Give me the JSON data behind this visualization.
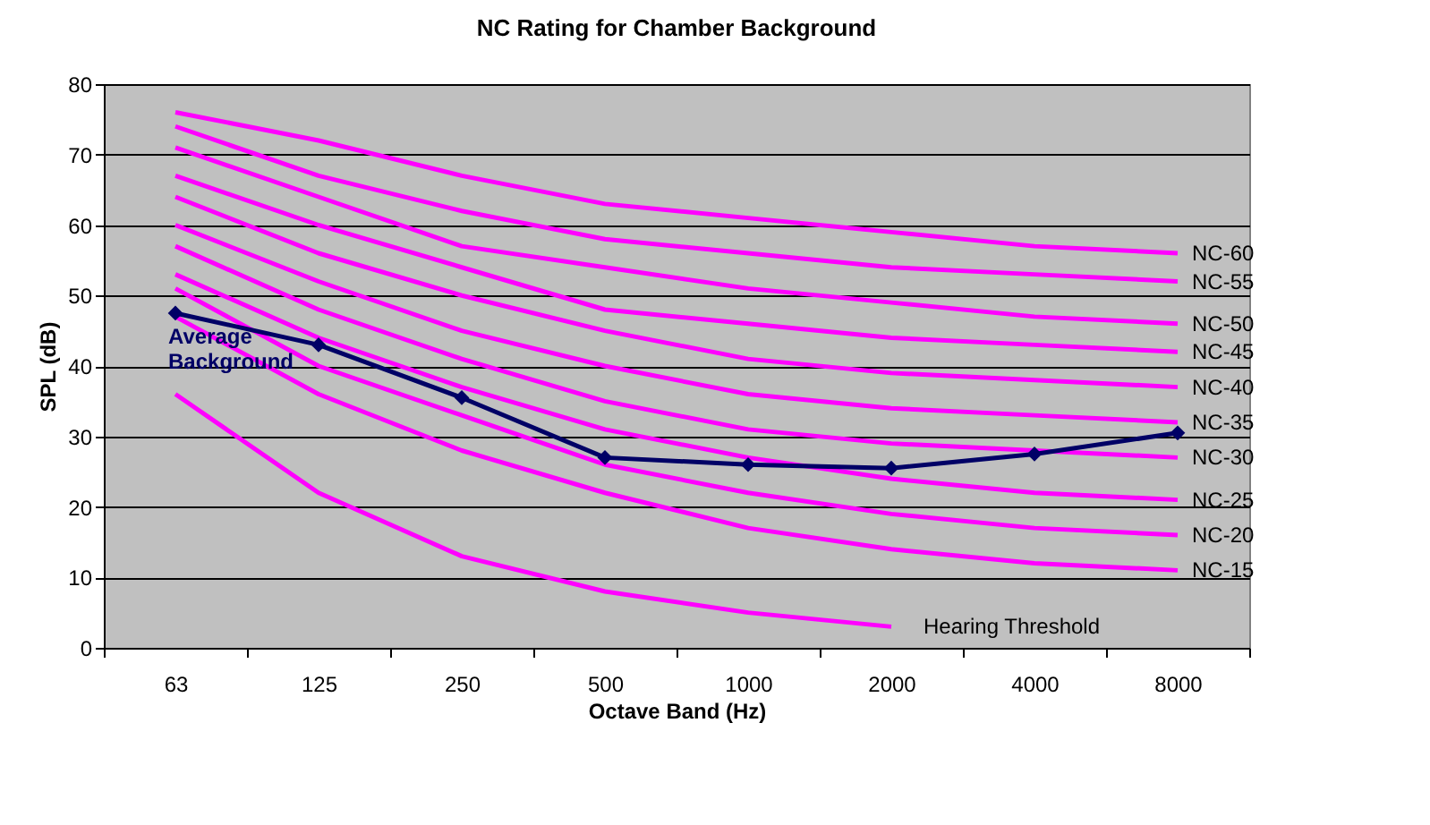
{
  "chart_data": {
    "type": "line",
    "title": "NC Rating for Chamber Background",
    "xlabel": "Octave Band (Hz)",
    "ylabel": "SPL (dB)",
    "categories": [
      "63",
      "125",
      "250",
      "500",
      "1000",
      "2000",
      "4000",
      "8000"
    ],
    "ylim": [
      0,
      80
    ],
    "yticks": [
      0,
      10,
      20,
      30,
      40,
      50,
      60,
      70,
      80
    ],
    "grid": "y",
    "legend": false,
    "series": [
      {
        "name": "NC-60",
        "color": "#ff00ff",
        "values": [
          76,
          72,
          67,
          63,
          61,
          59,
          57,
          56
        ]
      },
      {
        "name": "NC-55",
        "color": "#ff00ff",
        "values": [
          74,
          67,
          62,
          58,
          56,
          54,
          53,
          52
        ]
      },
      {
        "name": "NC-50",
        "color": "#ff00ff",
        "values": [
          71,
          64,
          57,
          54,
          51,
          49,
          47,
          46
        ]
      },
      {
        "name": "NC-45",
        "color": "#ff00ff",
        "values": [
          67,
          60,
          54,
          48,
          46,
          44,
          43,
          42
        ]
      },
      {
        "name": "NC-40",
        "color": "#ff00ff",
        "values": [
          64,
          56,
          50,
          45,
          41,
          39,
          38,
          37
        ]
      },
      {
        "name": "NC-35",
        "color": "#ff00ff",
        "values": [
          60,
          52,
          45,
          40,
          36,
          34,
          33,
          32
        ]
      },
      {
        "name": "NC-30",
        "color": "#ff00ff",
        "values": [
          57,
          48,
          41,
          35,
          31,
          29,
          28,
          27
        ]
      },
      {
        "name": "NC-25",
        "color": "#ff00ff",
        "values": [
          53,
          44,
          37,
          31,
          27,
          24,
          22,
          21
        ]
      },
      {
        "name": "NC-20",
        "color": "#ff00ff",
        "values": [
          51,
          40,
          33,
          26,
          22,
          19,
          17,
          16
        ]
      },
      {
        "name": "NC-15",
        "color": "#ff00ff",
        "values": [
          47,
          36,
          28,
          22,
          17,
          14,
          12,
          11
        ]
      },
      {
        "name": "Hearing Threshold",
        "color": "#ff00ff",
        "values": [
          36,
          22,
          13,
          8,
          5,
          3,
          null,
          null
        ]
      },
      {
        "name": "Average Background",
        "color": "#000066",
        "marker": "diamond",
        "values": [
          47.5,
          43,
          35.5,
          27,
          26,
          25.5,
          27.5,
          30.5
        ]
      }
    ]
  }
}
